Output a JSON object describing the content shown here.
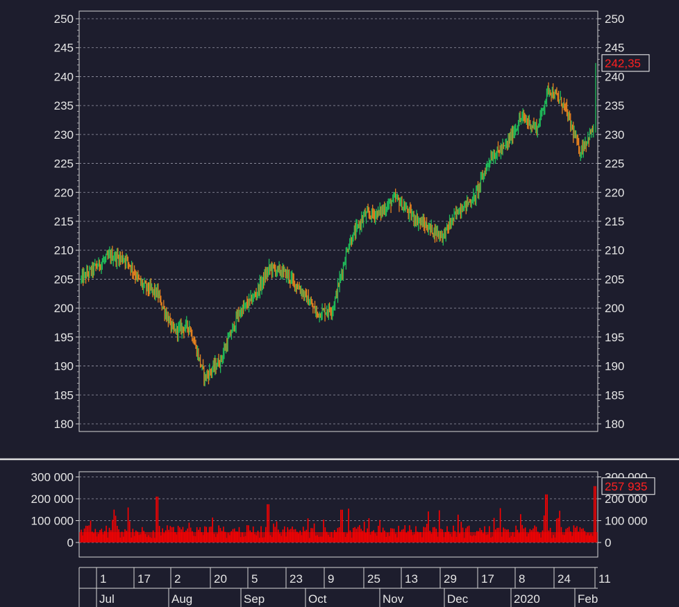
{
  "price_panel": {
    "y_ticks": [
      "250",
      "245",
      "240",
      "235",
      "230",
      "225",
      "220",
      "215",
      "210",
      "205",
      "200",
      "195",
      "190",
      "185",
      "180"
    ],
    "last_price_label": "242,35"
  },
  "volume_panel": {
    "y_ticks": [
      "300 000",
      "200 000",
      "100 000",
      "0"
    ],
    "last_volume_label": "257 935"
  },
  "date_axis": {
    "day_ticks": [
      "1",
      "17",
      "2",
      "20",
      "5",
      "23",
      "9",
      "25",
      "13",
      "29",
      "17",
      "8",
      "24",
      "11"
    ],
    "month_ticks": [
      "Jul",
      "Aug",
      "Sep",
      "Oct",
      "Nov",
      "Dec",
      "2020",
      "Feb"
    ]
  },
  "colors": {
    "background": "#1d1d2d",
    "frame": "#d8d8d8",
    "grid": "#9a9aaa",
    "up": "#1fbf5a",
    "down": "#e8821e",
    "volume": "#ff0000",
    "last_label": "#ff2020"
  },
  "chart_data": [
    {
      "type": "candlestick",
      "title": "",
      "x_range": [
        "2019-06-27",
        "2020-02-11"
      ],
      "ylim": [
        180,
        250
      ],
      "grid": true,
      "y_axis": "both sides",
      "last_value": 242.35,
      "series": [
        {
          "x": [
            "2019-06-27",
            "2019-07-03",
            "2019-07-10",
            "2019-07-17",
            "2019-07-24",
            "2019-07-31",
            "2019-08-02",
            "2019-08-07",
            "2019-08-14",
            "2019-08-21",
            "2019-08-28",
            "2019-09-05",
            "2019-09-12",
            "2019-09-19",
            "2019-09-26",
            "2019-10-03",
            "2019-10-10",
            "2019-10-17",
            "2019-10-24",
            "2019-10-31",
            "2019-11-07",
            "2019-11-14",
            "2019-11-21",
            "2019-11-28",
            "2019-12-05",
            "2019-12-12",
            "2019-12-19",
            "2019-12-26",
            "2020-01-02",
            "2020-01-09",
            "2020-01-16",
            "2020-01-21",
            "2020-01-28",
            "2020-02-04",
            "2020-02-10",
            "2020-02-11"
          ],
          "close": [
            205,
            207,
            209,
            208.5,
            204,
            202.5,
            200.5,
            196,
            197,
            188,
            191,
            199,
            202,
            207,
            206,
            203,
            199,
            200,
            211,
            216,
            216.5,
            219,
            216,
            214,
            212.5,
            217,
            219,
            226,
            228,
            233,
            231,
            238,
            235,
            227,
            231,
            242.35
          ]
        }
      ]
    },
    {
      "type": "bar",
      "title": "",
      "x_range": [
        "2019-06-27",
        "2020-02-11"
      ],
      "ylim": [
        -30000,
        320000
      ],
      "grid": true,
      "y_axis": "both sides",
      "typical_range": [
        20000,
        80000
      ],
      "peaks": [
        {
          "x": "2019-07-31",
          "value": 210000
        },
        {
          "x": "2019-09-18",
          "value": 175000
        },
        {
          "x": "2019-10-21",
          "value": 150000
        },
        {
          "x": "2020-01-20",
          "value": 220000
        },
        {
          "x": "2020-02-11",
          "value": 257935
        }
      ],
      "last_value": 257935
    }
  ]
}
